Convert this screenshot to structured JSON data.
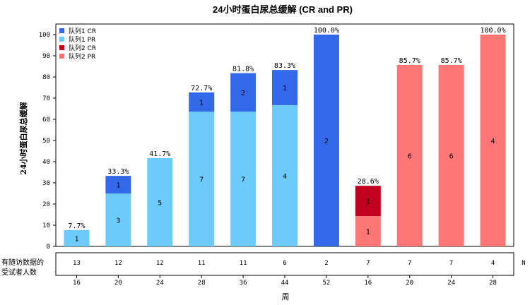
{
  "chart_data": {
    "type": "bar",
    "title": "24小时蛋白尿总缓解 (CR and PR)",
    "ylabel": "24小时蛋白尿总缓解",
    "xlabel": "周",
    "ylim": [
      0,
      105
    ],
    "yticks": [
      0,
      10,
      20,
      30,
      40,
      50,
      60,
      70,
      80,
      90,
      100
    ],
    "categories": [
      "16",
      "20",
      "24",
      "28",
      "36",
      "44",
      "52",
      "16",
      "20",
      "24",
      "28"
    ],
    "series": [
      {
        "name": "队列1 PR",
        "color": "#6CCBFB",
        "values": [
          7.7,
          25.0,
          41.7,
          63.6,
          63.6,
          66.7,
          0,
          0,
          0,
          0,
          0
        ],
        "labels": [
          "1",
          "3",
          "5",
          "7",
          "7",
          "4",
          "",
          "",
          "",
          "",
          ""
        ]
      },
      {
        "name": "队列1 CR",
        "color": "#3369E8",
        "values": [
          0,
          8.3,
          0,
          9.1,
          18.2,
          16.6,
          100.0,
          0,
          0,
          0,
          0
        ],
        "labels": [
          "",
          "1",
          "",
          "1",
          "2",
          "1",
          "2",
          "",
          "",
          "",
          ""
        ]
      },
      {
        "name": "队列2 PR",
        "color": "#FF7676",
        "values": [
          0,
          0,
          0,
          0,
          0,
          0,
          0,
          14.3,
          85.7,
          85.7,
          100.0
        ],
        "labels": [
          "",
          "",
          "",
          "",
          "",
          "",
          "",
          "1",
          "6",
          "6",
          "4"
        ]
      },
      {
        "name": "队列2 CR",
        "color": "#C0001C",
        "values": [
          0,
          0,
          0,
          0,
          0,
          0,
          0,
          14.3,
          0,
          0,
          0
        ],
        "labels": [
          "",
          "",
          "",
          "",
          "",
          "",
          "",
          "1",
          "",
          "",
          ""
        ]
      }
    ],
    "totals": [
      7.7,
      33.3,
      41.7,
      72.7,
      81.8,
      83.3,
      100.0,
      28.6,
      85.7,
      85.7,
      100.0
    ],
    "total_labels": [
      "7.7%",
      "33.3%",
      "41.7%",
      "72.7%",
      "81.8%",
      "83.3%",
      "100.0%",
      "28.6%",
      "85.7%",
      "85.7%",
      "100.0%"
    ],
    "legend": {
      "position": "top-left",
      "entries": [
        {
          "label": "队列1 CR",
          "color": "#3369E8"
        },
        {
          "label": "队列1 PR",
          "color": "#6CCBFB"
        },
        {
          "label": "队列2 CR",
          "color": "#C0001C"
        },
        {
          "label": "队列2 PR",
          "color": "#FF7676"
        }
      ]
    },
    "risk_table": {
      "label_line1": "有随访数据的",
      "label_line2": "受试者人数",
      "suffix": "N",
      "values": [
        "13",
        "12",
        "12",
        "11",
        "11",
        "6",
        "2",
        "7",
        "7",
        "7",
        "4"
      ]
    },
    "grid": false
  }
}
